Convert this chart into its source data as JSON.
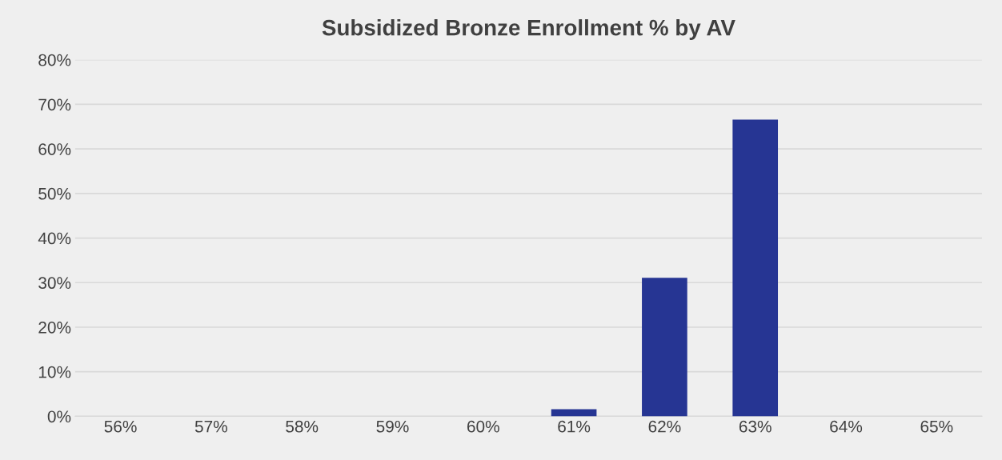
{
  "chart_data": {
    "type": "bar",
    "title": "Subsidized Bronze Enrollment % by AV",
    "categories": [
      "56%",
      "57%",
      "58%",
      "59%",
      "60%",
      "61%",
      "62%",
      "63%",
      "64%",
      "65%"
    ],
    "values": [
      0,
      0,
      0,
      0,
      0,
      1.6,
      31.1,
      66.6,
      0,
      0
    ],
    "color": "#263593",
    "ylim": [
      0,
      80
    ],
    "yticks": [
      {
        "value": 0,
        "label": "0%"
      },
      {
        "value": 10,
        "label": "10%"
      },
      {
        "value": 20,
        "label": "20%"
      },
      {
        "value": 30,
        "label": "30%"
      },
      {
        "value": 40,
        "label": "40%"
      },
      {
        "value": 50,
        "label": "50%"
      },
      {
        "value": 60,
        "label": "60%"
      },
      {
        "value": 70,
        "label": "70%"
      },
      {
        "value": 80,
        "label": "80%"
      }
    ],
    "grid": "y",
    "legend": false
  }
}
